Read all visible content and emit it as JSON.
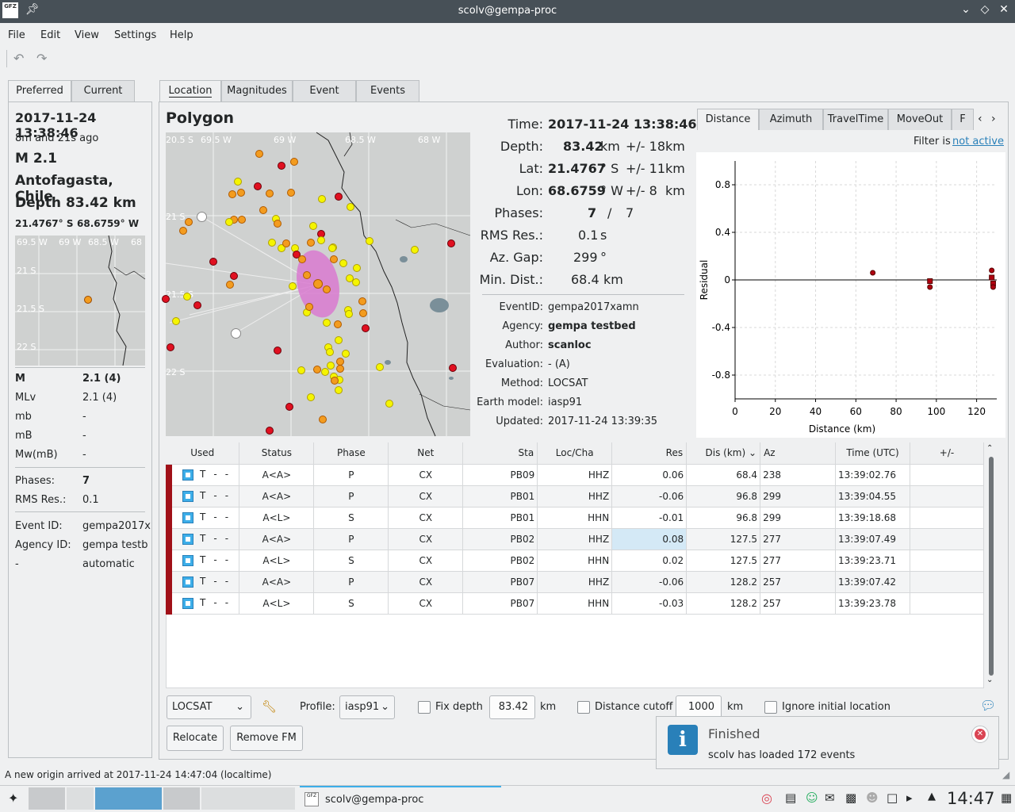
{
  "window": {
    "title": "scolv@gempa-proc",
    "logo_text": "GFZ"
  },
  "menu": [
    "File",
    "Edit",
    "View",
    "Settings",
    "Help"
  ],
  "left_tabs": [
    "Preferred",
    "Current"
  ],
  "summary": {
    "time": "2017-11-24 13:38:46",
    "ago": "8m and 21s ago",
    "mag": "M 2.1",
    "region": "Antofagasta, Chile",
    "depth": "Depth 83.42 km",
    "lat": "21.4767° S",
    "lon": "68.6759° W",
    "mini_map_labels": {
      "top": [
        "69.5 W",
        "69 W",
        "68.5 W",
        "68"
      ],
      "left": [
        "21 S",
        "21.5 S",
        "22 S"
      ]
    },
    "mags": [
      {
        "type": "M",
        "value": "2.1 (4)"
      },
      {
        "type": "MLv",
        "value": "2.1 (4)"
      },
      {
        "type": "mb",
        "value": "-"
      },
      {
        "type": "mB",
        "value": "-"
      },
      {
        "type": "Mw(mB)",
        "value": "-"
      }
    ],
    "phases_label": "Phases:",
    "phases": "7",
    "rms_label": "RMS Res.:",
    "rms": "0.1",
    "event_id_label": "Event ID:",
    "event_id": "gempa2017x",
    "agency_id_label": "Agency ID:",
    "agency_id": "gempa testb",
    "mode_label": "-",
    "mode": "automatic"
  },
  "main_tabs": [
    "Location",
    "Magnitudes",
    "Event",
    "Events"
  ],
  "location": {
    "title": "Polygon",
    "map_labels": {
      "top": [
        "20.5 S",
        "69.5 W",
        "69 W",
        "68.5 W",
        "68 W"
      ],
      "left": [
        "21 S",
        "21.5 S",
        "22 S"
      ]
    },
    "time_label": "Time:",
    "time": "2017-11-24 13:38:46",
    "depth_label": "Depth:",
    "depth": "83.42",
    "depth_unit": "km",
    "depth_err": "+/- 18",
    "depth_err_unit": "km",
    "lat_label": "Lat:",
    "lat": "21.4767",
    "lat_unit": "° S",
    "lat_err": "+/- 11",
    "lat_err_unit": "km",
    "lon_label": "Lon:",
    "lon": "68.6759",
    "lon_unit": "° W",
    "lon_err": "+/- 8",
    "lon_err_unit": "km",
    "phases_label": "Phases:",
    "phases_used": "7",
    "phases_sep": "/",
    "phases_total": "7",
    "rms_label": "RMS Res.:",
    "rms": "0.1",
    "rms_unit": "s",
    "gap_label": "Az. Gap:",
    "gap": "299",
    "gap_unit": "°",
    "mindist_label": "Min. Dist.:",
    "mindist": "68.4",
    "mindist_unit": "km",
    "meta": [
      {
        "label": "EventID:",
        "value": "gempa2017xamn",
        "bold": false
      },
      {
        "label": "Agency:",
        "value": "gempa testbed",
        "bold": true
      },
      {
        "label": "Author:",
        "value": "scanloc",
        "bold": true
      },
      {
        "label": "Evaluation:",
        "value": "- (A)",
        "bold": false
      },
      {
        "label": "Method:",
        "value": "LOCSAT",
        "bold": false
      },
      {
        "label": "Earth model:",
        "value": "iasp91",
        "bold": false
      },
      {
        "label": "Updated:",
        "value": "2017-11-24 13:39:35",
        "bold": false
      }
    ]
  },
  "plot_tabs": [
    "Distance",
    "Azimuth",
    "TravelTime",
    "MoveOut",
    "F"
  ],
  "filter": {
    "label": "Filter is",
    "link": "not active"
  },
  "chart_data": {
    "type": "scatter",
    "xlabel": "Distance (km)",
    "ylabel": "Residual",
    "xlim": [
      0,
      130
    ],
    "ylim": [
      -1,
      1
    ],
    "xticks": [
      "0",
      "20",
      "40",
      "60",
      "80",
      "100",
      "120"
    ],
    "yticks": [
      "0.8",
      "0.4",
      "0",
      "-0.4",
      "-0.8"
    ],
    "grid": true,
    "points": [
      {
        "x": 68.4,
        "y": 0.06,
        "shape": "circle"
      },
      {
        "x": 96.8,
        "y": -0.01,
        "shape": "square"
      },
      {
        "x": 96.8,
        "y": -0.06,
        "shape": "circle"
      },
      {
        "x": 127.5,
        "y": 0.08,
        "shape": "circle"
      },
      {
        "x": 127.5,
        "y": 0.02,
        "shape": "square"
      },
      {
        "x": 128.2,
        "y": -0.03,
        "shape": "square"
      },
      {
        "x": 128.2,
        "y": -0.06,
        "shape": "circle"
      }
    ]
  },
  "table": {
    "headers": [
      "Used",
      "Status",
      "Phase",
      "Net",
      "Sta",
      "Loc/Cha",
      "Res",
      "Dis (km)",
      "Az",
      "Time (UTC)",
      "+/-"
    ],
    "rows": [
      {
        "used": "T",
        "w1": "-",
        "w2": "-",
        "status": "A<A>",
        "phase": "P",
        "net": "CX",
        "sta": "PB09",
        "cha": "HHZ",
        "res": "0.06",
        "dis": "68.4",
        "az": "238",
        "time": "13:39:02.76",
        "pm": ""
      },
      {
        "used": "T",
        "w1": "-",
        "w2": "-",
        "status": "A<A>",
        "phase": "P",
        "net": "CX",
        "sta": "PB01",
        "cha": "HHZ",
        "res": "-0.06",
        "dis": "96.8",
        "az": "299",
        "time": "13:39:04.55",
        "pm": ""
      },
      {
        "used": "T",
        "w1": "-",
        "w2": "-",
        "status": "A<L>",
        "phase": "S",
        "net": "CX",
        "sta": "PB01",
        "cha": "HHN",
        "res": "-0.01",
        "dis": "96.8",
        "az": "299",
        "time": "13:39:18.68",
        "pm": ""
      },
      {
        "used": "T",
        "w1": "-",
        "w2": "-",
        "status": "A<A>",
        "phase": "P",
        "net": "CX",
        "sta": "PB02",
        "cha": "HHZ",
        "res": "0.08",
        "dis": "127.5",
        "az": "277",
        "time": "13:39:07.49",
        "pm": ""
      },
      {
        "used": "T",
        "w1": "-",
        "w2": "-",
        "status": "A<L>",
        "phase": "S",
        "net": "CX",
        "sta": "PB02",
        "cha": "HHN",
        "res": "0.02",
        "dis": "127.5",
        "az": "277",
        "time": "13:39:23.71",
        "pm": ""
      },
      {
        "used": "T",
        "w1": "-",
        "w2": "-",
        "status": "A<A>",
        "phase": "P",
        "net": "CX",
        "sta": "PB07",
        "cha": "HHZ",
        "res": "-0.06",
        "dis": "128.2",
        "az": "257",
        "time": "13:39:07.42",
        "pm": ""
      },
      {
        "used": "T",
        "w1": "-",
        "w2": "-",
        "status": "A<L>",
        "phase": "S",
        "net": "CX",
        "sta": "PB07",
        "cha": "HHN",
        "res": "-0.03",
        "dis": "128.2",
        "az": "257",
        "time": "13:39:23.78",
        "pm": ""
      }
    ]
  },
  "controls": {
    "locator": "LOCSAT",
    "profile_label": "Profile:",
    "profile": "iasp91",
    "fix_depth_label": "Fix depth",
    "fix_depth_value": "83.42",
    "fix_depth_unit": "km",
    "dist_cutoff_label": "Distance cutoff",
    "dist_cutoff_value": "1000",
    "dist_cutoff_unit": "km",
    "ignore_label": "Ignore initial location",
    "relocate": "Relocate",
    "remove_fm": "Remove FM"
  },
  "notification": {
    "title": "Finished",
    "message": "scolv has loaded 172 events"
  },
  "statusbar": "A new origin arrived at 2017-11-24 14:47:04 (localtime)",
  "taskbar": {
    "task": "scolv@gempa-proc",
    "clock": "14:47"
  },
  "colors": {
    "accent": "#3daee9",
    "titlebar": "#475057",
    "residual_point": "#b00010"
  }
}
